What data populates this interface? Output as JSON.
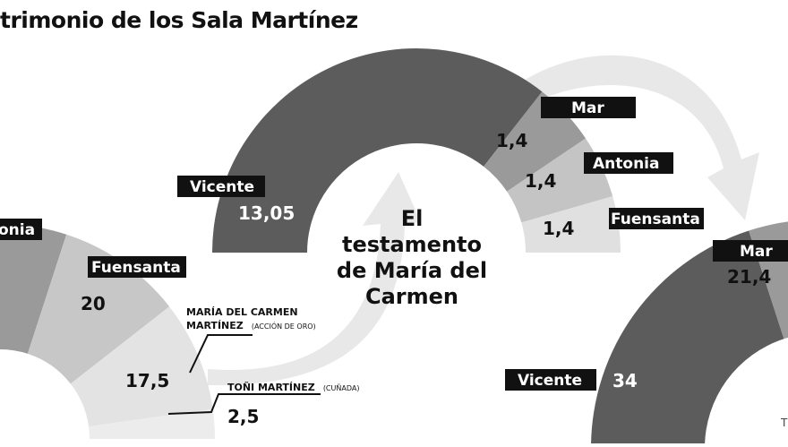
{
  "title": "trimonio de los Sala Martínez",
  "center_text": [
    "El",
    "testamento",
    "de María del",
    "Carmen"
  ],
  "annotations": {
    "maria": {
      "line1": "MARÍA DEL CARMEN",
      "line2": "MARTÍNEZ",
      "sub": "(ACCIÓN DE ORO)"
    },
    "toni": {
      "line1": "TOÑI MARTÍNEZ",
      "sub": "(CUÑADA)"
    }
  },
  "footer_fragment": "T",
  "colors": {
    "dark": "#5c5c5c",
    "mid": "#9a9a9a",
    "light": "#c7c7c7",
    "lighter": "#e3e3e3",
    "label_bg": "#111111",
    "arrow": "#e8e8e8"
  },
  "chart_data": [
    {
      "type": "pie",
      "title": "",
      "slices": [
        {
          "label": "onia",
          "value": ""
        },
        {
          "label": "Fuensanta",
          "value": "20"
        },
        {
          "label": "",
          "value": "17,5"
        },
        {
          "label": "",
          "value": "2,5"
        }
      ]
    },
    {
      "type": "pie",
      "title": "",
      "slices": [
        {
          "label": "Vicente",
          "value": "13,05"
        },
        {
          "label": "Mar",
          "value": "1,4"
        },
        {
          "label": "Antonia",
          "value": "1,4"
        },
        {
          "label": "Fuensanta",
          "value": "1,4"
        }
      ]
    },
    {
      "type": "pie",
      "title": "",
      "slices": [
        {
          "label": "Vicente",
          "value": "34"
        },
        {
          "label": "Mar",
          "value": "21,4"
        }
      ]
    }
  ]
}
